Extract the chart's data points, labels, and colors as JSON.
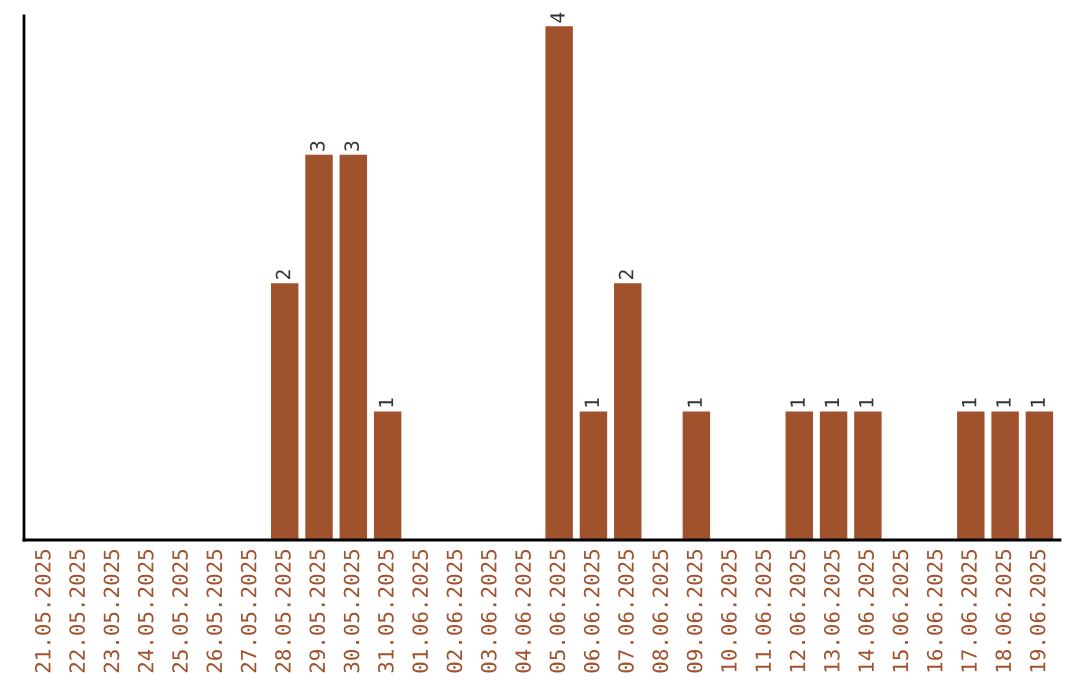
{
  "chart_data": {
    "type": "bar",
    "categories": [
      "21.05.2025",
      "22.05.2025",
      "23.05.2025",
      "24.05.2025",
      "25.05.2025",
      "26.05.2025",
      "27.05.2025",
      "28.05.2025",
      "29.05.2025",
      "30.05.2025",
      "31.05.2025",
      "01.06.2025",
      "02.06.2025",
      "03.06.2025",
      "04.06.2025",
      "05.06.2025",
      "06.06.2025",
      "07.06.2025",
      "08.06.2025",
      "09.06.2025",
      "10.06.2025",
      "11.06.2025",
      "12.06.2025",
      "13.06.2025",
      "14.06.2025",
      "15.06.2025",
      "16.06.2025",
      "17.06.2025",
      "18.06.2025",
      "19.06.2025"
    ],
    "values": [
      0,
      0,
      0,
      0,
      0,
      0,
      0,
      2,
      3,
      3,
      1,
      0,
      0,
      0,
      0,
      4,
      1,
      2,
      0,
      1,
      0,
      0,
      1,
      1,
      1,
      0,
      0,
      1,
      1,
      1
    ],
    "value_labels": [
      null,
      null,
      null,
      null,
      null,
      null,
      null,
      "2",
      "3",
      "3",
      "1",
      null,
      null,
      null,
      null,
      "4",
      "1",
      "2",
      null,
      "1",
      null,
      null,
      "1",
      "1",
      "1",
      null,
      null,
      "1",
      "1",
      "1"
    ],
    "color": "#a0522d",
    "tick_labels": "x",
    "grid": false,
    "legend": false
  }
}
